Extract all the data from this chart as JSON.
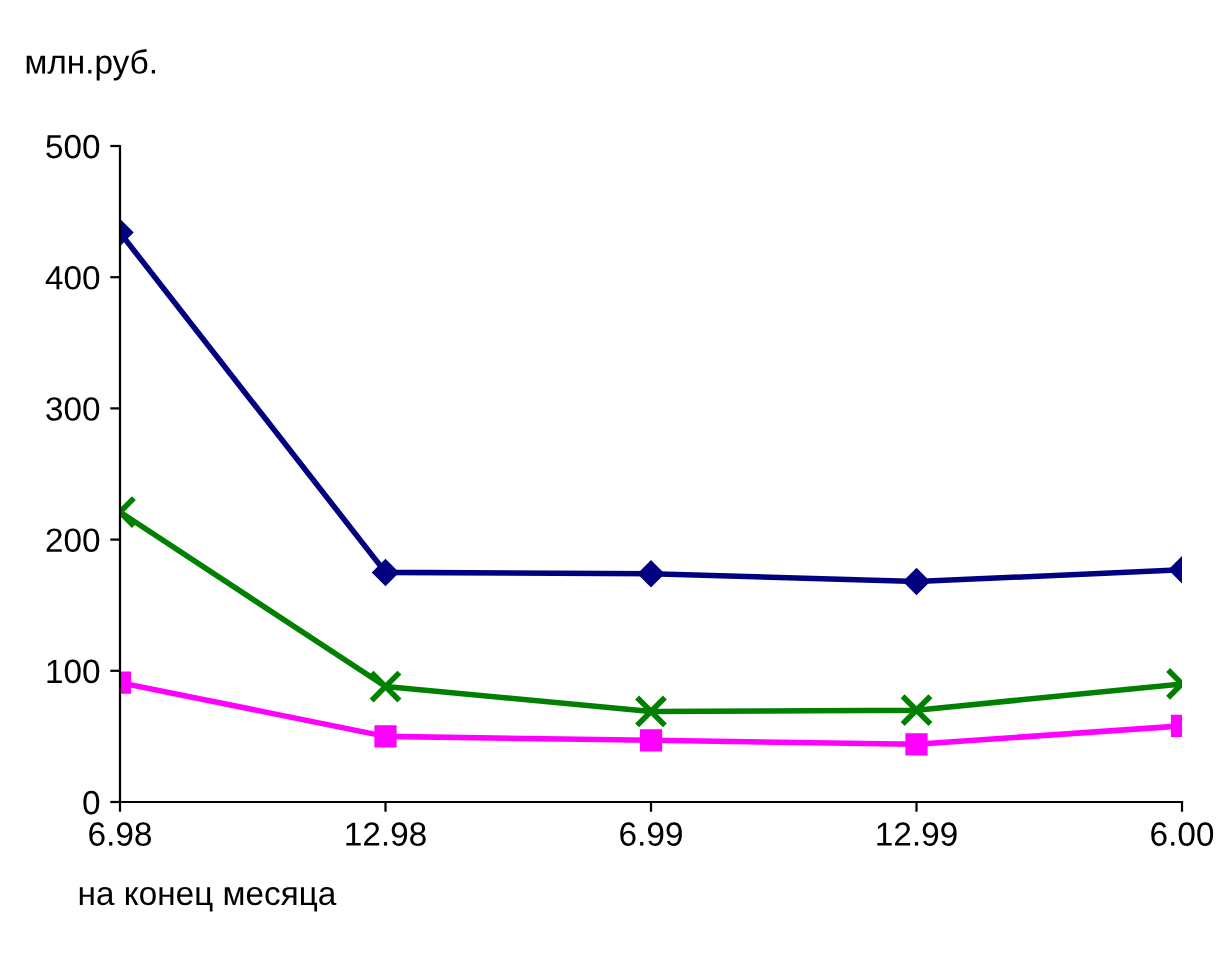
{
  "chart_data": {
    "type": "line",
    "ylabel": "млн.руб.",
    "xlabel": "на конец месяца",
    "categories": [
      "6.98",
      "12.98",
      "6.99",
      "12.99",
      "6.00"
    ],
    "series": [
      {
        "color": "#000080",
        "marker": "diamond",
        "values": [
          434,
          175,
          174,
          168,
          177
        ]
      },
      {
        "color": "#008000",
        "marker": "cross",
        "values": [
          221,
          88,
          69,
          70,
          90
        ]
      },
      {
        "color": "#ff00ff",
        "marker": "square",
        "values": [
          91,
          50,
          47,
          44,
          58
        ]
      }
    ],
    "ylim": [
      0,
      500
    ],
    "yticks": [
      0,
      100,
      200,
      300,
      400,
      500
    ],
    "grid": false,
    "legend": false
  }
}
